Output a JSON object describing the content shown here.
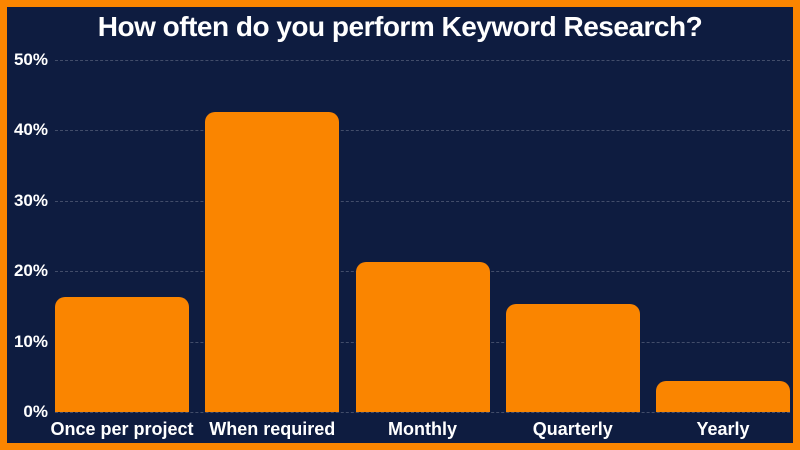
{
  "frame": {
    "border_color": "#FA8500",
    "background_color": "#0E1C40",
    "text_color": "#FFFFFF"
  },
  "chart_data": {
    "type": "bar",
    "title": "How often do you perform Keyword Research?",
    "categories": [
      "Once per project",
      "When required",
      "Monthly",
      "Quarterly",
      "Yearly"
    ],
    "values": [
      16.4,
      42.6,
      21.3,
      15.3,
      4.4
    ],
    "unit": "%",
    "xlabel": "",
    "ylabel": "",
    "ylim": [
      0,
      50
    ],
    "ytick_values": [
      0,
      10,
      20,
      30,
      40,
      50
    ],
    "ytick_labels": [
      "0%",
      "10%",
      "20%",
      "30%",
      "40%",
      "50%"
    ],
    "grid": "horizontal-dashed",
    "legend_position": "none",
    "bar_color": "#FA8500",
    "gridline_color": "rgba(255,255,255,0.22)"
  }
}
